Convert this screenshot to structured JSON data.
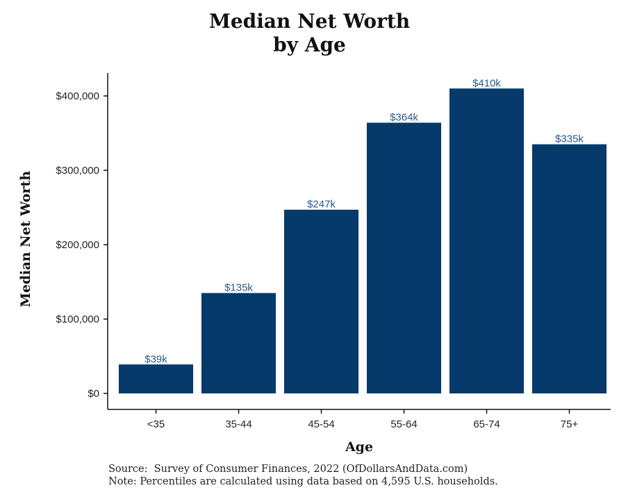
{
  "chart_data": {
    "type": "bar",
    "title_line1": "Median Net Worth",
    "title_line2": "by Age",
    "xlabel": "Age",
    "ylabel": "Median Net Worth",
    "categories": [
      "<35",
      "35-44",
      "45-54",
      "55-64",
      "65-74",
      "75+"
    ],
    "values": [
      39000,
      135000,
      247000,
      364000,
      410000,
      335000
    ],
    "data_labels": [
      "$39k",
      "$135k",
      "$247k",
      "$364k",
      "$410k",
      "$335k"
    ],
    "yticks": [
      0,
      100000,
      200000,
      300000,
      400000
    ],
    "ytick_labels": [
      "$0",
      "$100,000",
      "$200,000",
      "$300,000",
      "$400,000"
    ],
    "ylim": [
      0,
      430000
    ],
    "grid": false,
    "bar_color": "#053a6b",
    "label_color": "#2a5a8a"
  },
  "notes": {
    "source": "Source:  Survey of Consumer Finances, 2022 (OfDollarsAndData.com)",
    "note": "Note: Percentiles are calculated using data based on 4,595 U.S. households."
  }
}
